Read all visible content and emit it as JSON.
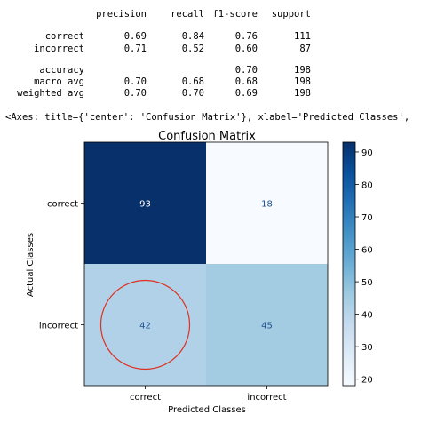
{
  "report": {
    "header": [
      "",
      "precision",
      "recall",
      "f1-score",
      "support"
    ],
    "rows": [
      [
        "correct",
        "0.69",
        "0.84",
        "0.76",
        "111"
      ],
      [
        "incorrect",
        "0.71",
        "0.52",
        "0.60",
        "87"
      ],
      [
        "accuracy",
        "",
        "",
        "0.70",
        "198"
      ],
      [
        "macro avg",
        "0.70",
        "0.68",
        "0.68",
        "198"
      ],
      [
        "weighted avg",
        "0.70",
        "0.70",
        "0.69",
        "198"
      ]
    ]
  },
  "axes_repr": "<Axes: title={'center': 'Confusion Matrix'}, xlabel='Predicted Classes',",
  "chart_data": {
    "type": "heatmap",
    "title": "Confusion Matrix",
    "xlabel": "Predicted Classes",
    "ylabel": "Actual Classes",
    "x_categories": [
      "correct",
      "incorrect"
    ],
    "y_categories": [
      "correct",
      "incorrect"
    ],
    "values": [
      [
        93,
        18
      ],
      [
        42,
        45
      ]
    ],
    "colormap": "Blues",
    "colorbar": {
      "range": [
        18,
        93
      ],
      "ticks": [
        20,
        30,
        40,
        50,
        60,
        70,
        80,
        90
      ]
    },
    "annotation": {
      "shape": "circle",
      "cell": [
        1,
        0
      ],
      "color": "#e03020"
    },
    "colors": {
      "dark_text": "#ffffff",
      "light_text": "#1f4e8c"
    }
  }
}
